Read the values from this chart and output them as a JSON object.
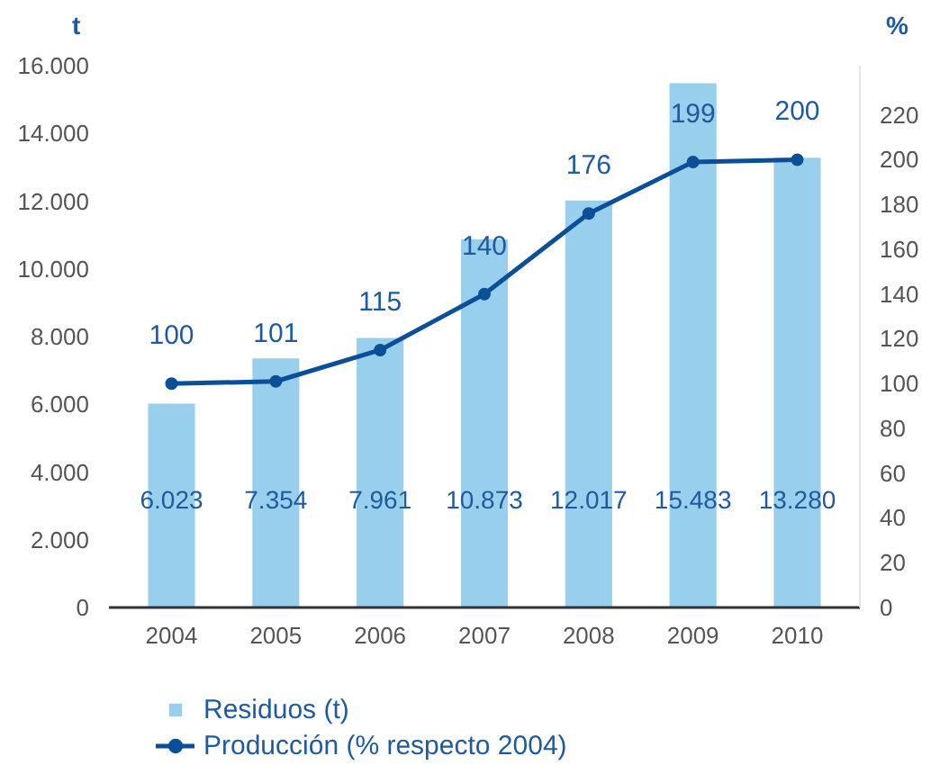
{
  "chart_data": {
    "type": "bar",
    "ylabel": "t",
    "y2label": "%",
    "categories": [
      "2004",
      "2005",
      "2006",
      "2007",
      "2008",
      "2009",
      "2010"
    ],
    "series": [
      {
        "name": "Residuos (t)",
        "color": "#97cfec",
        "values": [
          6023,
          7354,
          7961,
          10873,
          12017,
          15483,
          13280
        ],
        "value_labels": [
          "6.023",
          "7.354",
          "7.961",
          "10.873",
          "12.017",
          "15.483",
          "13.280"
        ]
      },
      {
        "name": "Producción (% respecto 2004)",
        "type": "line",
        "axis": "y2",
        "color": "#0a4f97",
        "values": [
          100,
          101,
          115,
          140,
          176,
          199,
          200
        ]
      }
    ],
    "data_labels": true,
    "marker": "circle",
    "line_style": "solid",
    "legend": "bottom left",
    "grid": false,
    "ylim": [
      0,
      16000
    ],
    "yticks": [
      {
        "value": 0,
        "label": "0"
      },
      {
        "value": 2000,
        "label": "2.000"
      },
      {
        "value": 4000,
        "label": "4.000"
      },
      {
        "value": 6000,
        "label": "6.000"
      },
      {
        "value": 8000,
        "label": "8.000"
      },
      {
        "value": 10000,
        "label": "10.000"
      },
      {
        "value": 12000,
        "label": "12.000"
      },
      {
        "value": 14000,
        "label": "14.000"
      },
      {
        "value": 16000,
        "label": "16.000"
      }
    ],
    "y2lim": [
      0,
      242
    ],
    "y2ticks": [
      0,
      20,
      40,
      60,
      80,
      100,
      120,
      140,
      160,
      180,
      200,
      220
    ]
  }
}
